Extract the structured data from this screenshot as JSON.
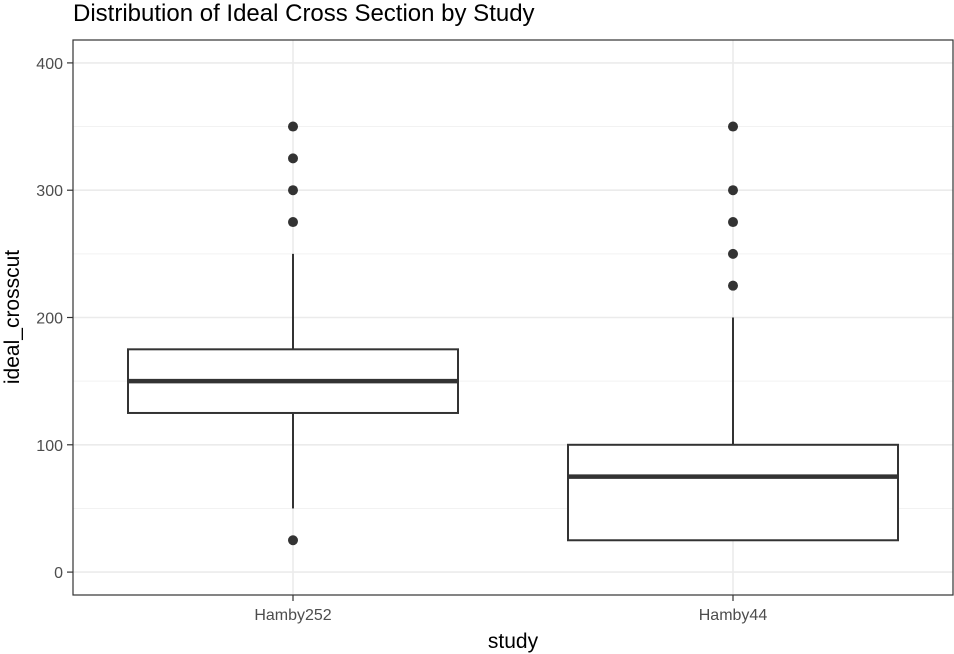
{
  "chart_data": {
    "type": "boxplot",
    "title": "Distribution of Ideal Cross Section by Study",
    "xlabel": "study",
    "ylabel": "ideal_crosscut",
    "categories": [
      "Hamby252",
      "Hamby44"
    ],
    "ylim": [
      -18,
      418
    ],
    "yticks": [
      0,
      100,
      200,
      300,
      400
    ],
    "ytick_labels": [
      "0",
      "100",
      "200",
      "300",
      "400"
    ],
    "grid": true,
    "legend": "none",
    "boxes": [
      {
        "category": "Hamby252",
        "whisker_low": 50,
        "q1": 125,
        "median": 150,
        "q3": 175,
        "whisker_high": 250,
        "outliers": [
          25,
          275,
          300,
          325,
          350
        ]
      },
      {
        "category": "Hamby44",
        "whisker_low": 25,
        "q1": 25,
        "median": 75,
        "q3": 100,
        "whisker_high": 200,
        "outliers": [
          225,
          250,
          275,
          300,
          350
        ]
      }
    ],
    "colors": {
      "box_stroke": "#333333",
      "box_fill": "#ffffff",
      "outlier": "#333333",
      "grid_major": "#ebebeb",
      "grid_minor": "#f2f2f2",
      "panel_border": "#333333",
      "tick_label": "#4d4d4d"
    }
  }
}
